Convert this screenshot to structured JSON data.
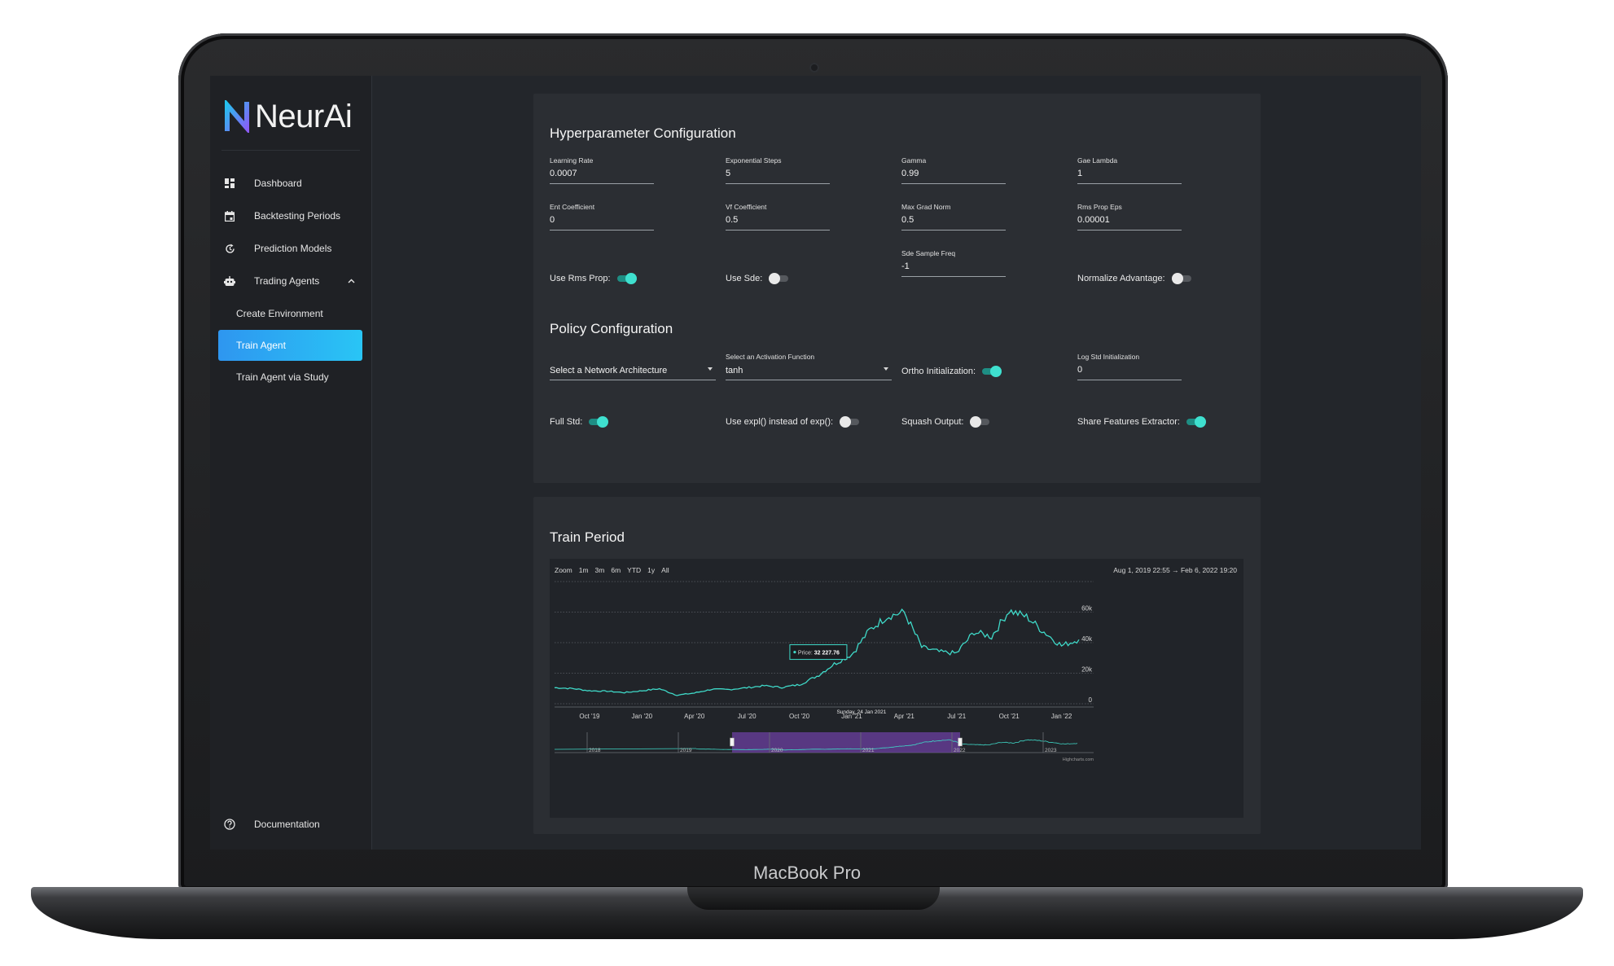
{
  "device": {
    "brand": "MacBook Pro"
  },
  "app": {
    "name": "NeurAi"
  },
  "sidebar": {
    "items": [
      {
        "label": "Dashboard",
        "icon": "dashboard-grid-icon"
      },
      {
        "label": "Backtesting Periods",
        "icon": "calendar-icon"
      },
      {
        "label": "Prediction Models",
        "icon": "refresh-clock-icon"
      },
      {
        "label": "Trading Agents",
        "icon": "robot-icon",
        "expanded": true
      }
    ],
    "sub_items": [
      {
        "label": "Create Environment",
        "active": false
      },
      {
        "label": "Train Agent",
        "active": true
      },
      {
        "label": "Train Agent via Study",
        "active": false
      }
    ],
    "footer": {
      "label": "Documentation",
      "icon": "help-circle-icon"
    }
  },
  "hyper": {
    "title": "Hyperparameter Configuration",
    "fields": [
      {
        "label": "Learning Rate",
        "value": "0.0007"
      },
      {
        "label": "Exponential Steps",
        "value": "5"
      },
      {
        "label": "Gamma",
        "value": "0.99"
      },
      {
        "label": "Gae Lambda",
        "value": "1"
      },
      {
        "label": "Ent Coefficient",
        "value": "0"
      },
      {
        "label": "Vf Coefficient",
        "value": "0.5"
      },
      {
        "label": "Max Grad Norm",
        "value": "0.5"
      },
      {
        "label": "Rms Prop Eps",
        "value": "0.00001"
      },
      {
        "label": "Sde Sample Freq",
        "value": "-1"
      }
    ],
    "toggles": [
      {
        "label": "Use Rms Prop:",
        "on": true
      },
      {
        "label": "Use Sde:",
        "on": false
      },
      {
        "label": "Normalize Advantage:",
        "on": false
      }
    ]
  },
  "policy": {
    "title": "Policy Configuration",
    "network_select": {
      "label": "",
      "value": "Select a Network Architecture"
    },
    "activation_select": {
      "label": "Select an Activation Function",
      "value": "tanh"
    },
    "ortho": {
      "label": "Ortho Initialization:",
      "on": true
    },
    "log_std": {
      "label": "Log Std Initialization",
      "value": "0"
    },
    "toggles": [
      {
        "label": "Full Std:",
        "on": true
      },
      {
        "label": "Use expl() instead of exp():",
        "on": false
      },
      {
        "label": "Squash Output:",
        "on": false
      },
      {
        "label": "Share Features Extractor:",
        "on": true
      }
    ]
  },
  "train": {
    "title": "Train Period",
    "zoom_label": "Zoom",
    "zoom_options": [
      "1m",
      "3m",
      "6m",
      "YTD",
      "1y",
      "All"
    ],
    "range_from": "Aug 1, 2019 22:55",
    "range_arrow": "→",
    "range_to": "Feb 6, 2022 19:20",
    "tooltip_series": "Price:",
    "tooltip_value": "32 227.76",
    "crosshair_label": "Sunday, 24 Jan 2021",
    "credits": "Highcharts.com",
    "navigator_years": [
      "2018",
      "2019",
      "2020",
      "2021",
      "2022",
      "2023"
    ]
  },
  "chart_data": {
    "type": "line",
    "title": "",
    "xlabel": "",
    "ylabel": "",
    "series": [
      {
        "name": "Price",
        "x": [
          "Aug '19",
          "Sep '19",
          "Oct '19",
          "Nov '19",
          "Dec '19",
          "Jan '20",
          "Feb '20",
          "Mar '20",
          "Apr '20",
          "May '20",
          "Jun '20",
          "Jul '20",
          "Aug '20",
          "Sep '20",
          "Oct '20",
          "Nov '20",
          "Dec '20",
          "Jan '21",
          "Feb '21",
          "Mar '21",
          "Apr '21",
          "May '21",
          "Jun '21",
          "Jul '21",
          "Aug '21",
          "Sep '21",
          "Oct '21",
          "Nov '21",
          "Dec '21",
          "Jan '22",
          "Feb '22"
        ],
        "values": [
          10500,
          10000,
          8500,
          8200,
          7300,
          8500,
          9800,
          5600,
          7000,
          9500,
          9300,
          10500,
          11800,
          10700,
          12500,
          18000,
          26000,
          32227.76,
          48000,
          57000,
          60000,
          37000,
          34000,
          33000,
          47000,
          44000,
          61000,
          57000,
          47000,
          38000,
          42000
        ]
      }
    ],
    "x_tick_labels": [
      "Oct '19",
      "Jan '20",
      "Apr '20",
      "Jul '20",
      "Oct '20",
      "Jan '21",
      "Apr '21",
      "Jul '21",
      "Oct '21",
      "Jan '22"
    ],
    "y_tick_labels": [
      "0",
      "20k",
      "40k",
      "60k"
    ],
    "ylim": [
      0,
      80000
    ],
    "grid": true,
    "line_color": "#3fd9c8",
    "selected_range": [
      "Aug 1, 2019 22:55",
      "Feb 6, 2022 19:20"
    ]
  }
}
